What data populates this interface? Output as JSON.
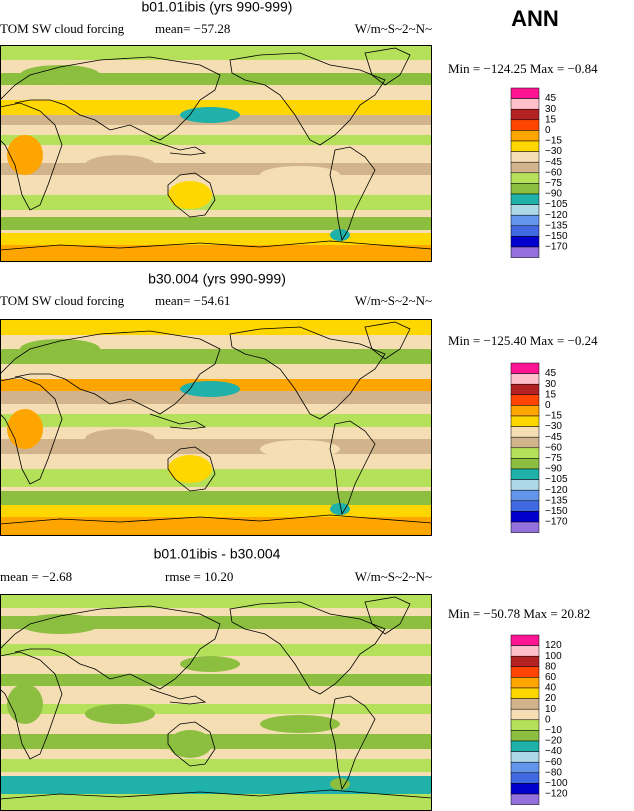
{
  "header": {
    "title": "ANN"
  },
  "panels": [
    {
      "title": "b01.01ibis (yrs 990-999)",
      "left_label": "TOM SW cloud forcing",
      "mid_label": "mean=  −57.28",
      "units": "W/m~S~2~N~",
      "min_max": "Min = −124.25 Max =  −0.84",
      "colorbar": {
        "labels": [
          "45",
          "30",
          "15",
          "0",
          "−15",
          "−30",
          "−45",
          "−60",
          "−75",
          "−90",
          "−105",
          "−120",
          "−135",
          "−150",
          "−170"
        ],
        "colors": [
          "#ff1493",
          "#ffc0cb",
          "#b22222",
          "#ff4500",
          "#ffa500",
          "#ffd700",
          "#f5deb3",
          "#d2b48c",
          "#b4e05a",
          "#8cbf3f",
          "#20b2aa",
          "#add8e6",
          "#6495ed",
          "#4169e1",
          "#0000cd",
          "#9370db"
        ]
      }
    },
    {
      "title": "b30.004 (yrs 990-999)",
      "left_label": "TOM SW cloud forcing",
      "mid_label": "mean=  −54.61",
      "units": "W/m~S~2~N~",
      "min_max": "Min = −125.40 Max =  −0.24",
      "colorbar": {
        "labels": [
          "45",
          "30",
          "15",
          "0",
          "−15",
          "−30",
          "−45",
          "−60",
          "−75",
          "−90",
          "−105",
          "−120",
          "−135",
          "−150",
          "−170"
        ],
        "colors": [
          "#ff1493",
          "#ffc0cb",
          "#b22222",
          "#ff4500",
          "#ffa500",
          "#ffd700",
          "#f5deb3",
          "#d2b48c",
          "#b4e05a",
          "#8cbf3f",
          "#20b2aa",
          "#add8e6",
          "#6495ed",
          "#4169e1",
          "#0000cd",
          "#9370db"
        ]
      }
    },
    {
      "title": "b01.01ibis - b30.004",
      "left_label": "mean =  −2.68",
      "mid_label": "rmse =  10.20",
      "units": "W/m~S~2~N~",
      "min_max": "Min = −50.78 Max =  20.82",
      "colorbar": {
        "labels": [
          "120",
          "100",
          "80",
          "60",
          "40",
          "20",
          "10",
          "0",
          "−10",
          "−20",
          "−40",
          "−60",
          "−80",
          "−100",
          "−120"
        ],
        "colors": [
          "#ff1493",
          "#ffc0cb",
          "#b22222",
          "#ff4500",
          "#ffa500",
          "#ffd700",
          "#d2b48c",
          "#f5deb3",
          "#b4e05a",
          "#8cbf3f",
          "#20b2aa",
          "#add8e6",
          "#6495ed",
          "#4169e1",
          "#0000cd",
          "#9370db"
        ]
      }
    }
  ]
}
